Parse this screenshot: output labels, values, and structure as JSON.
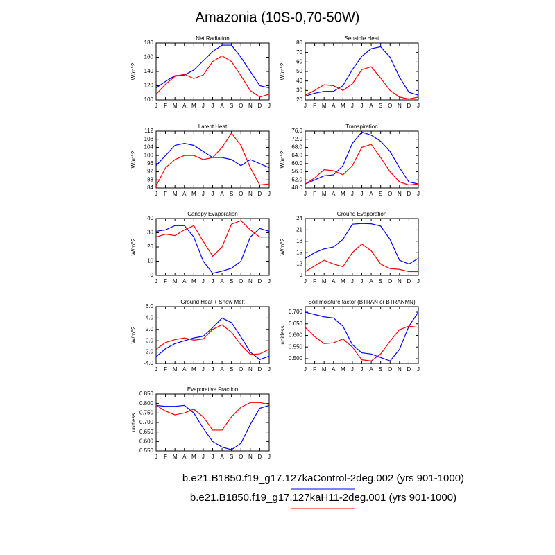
{
  "title": "Amazonia (10S-0,70-50W)",
  "legend": [
    {
      "name": "b.e21.B1850.f19_g17.127kaControl-2deg.002 (yrs 901-1000)",
      "color": "#0000ff"
    },
    {
      "name": "b.e21.B1850.f19_g17.127kaH11-2deg.001 (yrs 901-1000)",
      "color": "#ff0000"
    }
  ],
  "chart_data": [
    {
      "type": "line",
      "title": "Net Radiation",
      "ylabel": "W/m^2",
      "categories": [
        "J",
        "F",
        "M",
        "A",
        "M",
        "J",
        "J",
        "A",
        "S",
        "O",
        "N",
        "D",
        "J"
      ],
      "ylim": [
        100,
        180
      ],
      "yticks": [
        100,
        120,
        140,
        160,
        180
      ],
      "series": [
        {
          "color": "#0000ff",
          "values": [
            117,
            126,
            134,
            135,
            142,
            155,
            168,
            177,
            177,
            160,
            140,
            120,
            117
          ]
        },
        {
          "color": "#ff0000",
          "values": [
            108,
            122,
            133,
            136,
            130,
            135,
            154,
            162,
            154,
            134,
            113,
            104,
            108
          ]
        }
      ]
    },
    {
      "type": "line",
      "title": "Sensible Heat",
      "ylabel": "W/m^2",
      "categories": [
        "J",
        "F",
        "M",
        "A",
        "M",
        "J",
        "J",
        "A",
        "S",
        "O",
        "N",
        "D",
        "J"
      ],
      "ylim": [
        20,
        80
      ],
      "yticks": [
        20,
        30,
        40,
        50,
        60,
        70,
        80
      ],
      "series": [
        {
          "color": "#0000ff",
          "values": [
            24,
            27,
            29,
            29,
            35,
            52,
            66,
            74,
            76,
            65,
            44,
            28,
            25
          ]
        },
        {
          "color": "#ff0000",
          "values": [
            25,
            30,
            36,
            35,
            30,
            37,
            52,
            55,
            43,
            30,
            23,
            21,
            23
          ]
        }
      ]
    },
    {
      "type": "line",
      "title": "Latent Heat",
      "ylabel": "W/m^2",
      "categories": [
        "J",
        "F",
        "M",
        "A",
        "M",
        "J",
        "J",
        "A",
        "S",
        "O",
        "N",
        "D",
        "J"
      ],
      "ylim": [
        84,
        112
      ],
      "yticks": [
        84,
        88,
        92,
        96,
        100,
        104,
        108,
        112
      ],
      "series": [
        {
          "color": "#0000ff",
          "values": [
            95,
            100,
            105,
            106,
            105,
            102,
            99,
            99,
            98,
            95,
            98,
            96,
            94
          ]
        },
        {
          "color": "#ff0000",
          "values": [
            85,
            94,
            98,
            100,
            100,
            98,
            99,
            104,
            111,
            105,
            94,
            85.5,
            86
          ]
        }
      ]
    },
    {
      "type": "line",
      "title": "Transpiration",
      "ylabel": "W/m^2",
      "categories": [
        "J",
        "F",
        "M",
        "A",
        "M",
        "J",
        "J",
        "A",
        "S",
        "O",
        "N",
        "D",
        "J"
      ],
      "ylim": [
        48,
        76
      ],
      "yticks": [
        {
          "value": 48,
          "label": "48.0"
        },
        {
          "value": 52,
          "label": "52.0"
        },
        {
          "value": 56,
          "label": "56.0"
        },
        {
          "value": 60,
          "label": "60.0"
        },
        {
          "value": 64,
          "label": "64.0"
        },
        {
          "value": 68,
          "label": "68.0"
        },
        {
          "value": 72,
          "label": "72.0"
        },
        {
          "value": 76,
          "label": "76.0"
        }
      ],
      "series": [
        {
          "color": "#0000ff",
          "values": [
            50,
            52,
            54,
            54.5,
            59,
            70,
            75.5,
            74,
            71,
            66,
            58,
            51,
            50
          ]
        },
        {
          "color": "#ff0000",
          "values": [
            50,
            53,
            57,
            56.5,
            54.5,
            59,
            68,
            69.5,
            63,
            56,
            51,
            49.5,
            50
          ]
        }
      ]
    },
    {
      "type": "line",
      "title": "Canopy Evaporation",
      "ylabel": "W/m^2",
      "categories": [
        "J",
        "F",
        "M",
        "A",
        "M",
        "J",
        "J",
        "A",
        "S",
        "O",
        "N",
        "D",
        "J"
      ],
      "ylim": [
        0,
        40
      ],
      "yticks": [
        0,
        10,
        20,
        30,
        40
      ],
      "series": [
        {
          "color": "#0000ff",
          "values": [
            31,
            32,
            35,
            35,
            27,
            10,
            1.5,
            3,
            5,
            10,
            27,
            33,
            31
          ]
        },
        {
          "color": "#ff0000",
          "values": [
            27,
            29,
            28,
            32,
            35,
            24,
            13.5,
            20,
            36,
            38.5,
            32,
            27,
            27
          ]
        }
      ]
    },
    {
      "type": "line",
      "title": "Ground Evaporation",
      "ylabel": "W/m^2",
      "categories": [
        "J",
        "F",
        "M",
        "A",
        "M",
        "J",
        "J",
        "A",
        "S",
        "O",
        "N",
        "D",
        "J"
      ],
      "ylim": [
        9,
        24
      ],
      "yticks": [
        9,
        12,
        15,
        18,
        21,
        24
      ],
      "series": [
        {
          "color": "#0000ff",
          "values": [
            13.5,
            15,
            16,
            16.5,
            18.5,
            22.5,
            22.7,
            22.6,
            22,
            18.5,
            13,
            12,
            13.5
          ]
        },
        {
          "color": "#ff0000",
          "values": [
            10,
            11.5,
            13,
            12,
            11.3,
            15,
            17.3,
            15.5,
            12,
            10.8,
            10.6,
            10,
            10
          ]
        }
      ]
    },
    {
      "type": "line",
      "title": "Ground Heat + Snow Melt",
      "ylabel": "W/m^2",
      "categories": [
        "J",
        "F",
        "M",
        "A",
        "M",
        "J",
        "J",
        "A",
        "S",
        "O",
        "N",
        "D",
        "J"
      ],
      "ylim": [
        -4,
        6
      ],
      "yticks": [
        {
          "value": -4,
          "label": "-4.0"
        },
        {
          "value": -2,
          "label": "-2.0"
        },
        {
          "value": 0,
          "label": "0.0"
        },
        {
          "value": 2,
          "label": "2.0"
        },
        {
          "value": 4,
          "label": "4.0"
        },
        {
          "value": 6,
          "label": "6.0"
        }
      ],
      "series": [
        {
          "color": "#0000ff",
          "values": [
            -2.8,
            -1.4,
            -0.5,
            0,
            0.5,
            0.8,
            2.3,
            4,
            3.2,
            0.7,
            -2,
            -3.3,
            -2.7
          ]
        },
        {
          "color": "#ff0000",
          "values": [
            -1.5,
            -0.3,
            0.2,
            0.5,
            0.1,
            0.3,
            2,
            2.8,
            1.5,
            -0.7,
            -2.4,
            -2.3,
            -1.5
          ]
        }
      ]
    },
    {
      "type": "line",
      "title": "Soil moisture factor (BTRAN or BTRANMN)",
      "ylabel": "unitless",
      "categories": [
        "J",
        "F",
        "M",
        "A",
        "M",
        "J",
        "J",
        "A",
        "S",
        "O",
        "N",
        "D",
        "J"
      ],
      "ylim": [
        0.479,
        0.724
      ],
      "yticks": [
        {
          "value": 0.5,
          "label": "0.500"
        },
        {
          "value": 0.55,
          "label": "0.550"
        },
        {
          "value": 0.6,
          "label": "0.600"
        },
        {
          "value": 0.65,
          "label": "0.650"
        },
        {
          "value": 0.7,
          "label": "0.700"
        }
      ],
      "series": [
        {
          "color": "#0000ff",
          "values": [
            0.7,
            0.69,
            0.68,
            0.675,
            0.64,
            0.56,
            0.525,
            0.52,
            0.505,
            0.49,
            0.54,
            0.64,
            0.7
          ]
        },
        {
          "color": "#ff0000",
          "values": [
            0.635,
            0.595,
            0.565,
            0.568,
            0.585,
            0.55,
            0.495,
            0.49,
            0.52,
            0.575,
            0.625,
            0.64,
            0.635
          ]
        }
      ]
    },
    {
      "type": "line",
      "title": "Evaporative Fraction",
      "ylabel": "unitless",
      "categories": [
        "J",
        "F",
        "M",
        "A",
        "M",
        "J",
        "J",
        "A",
        "S",
        "O",
        "N",
        "D",
        "J"
      ],
      "ylim": [
        0.55,
        0.85
      ],
      "yticks": [
        {
          "value": 0.55,
          "label": "0.550"
        },
        {
          "value": 0.6,
          "label": "0.600"
        },
        {
          "value": 0.65,
          "label": "0.650"
        },
        {
          "value": 0.7,
          "label": "0.700"
        },
        {
          "value": 0.75,
          "label": "0.750"
        },
        {
          "value": 0.8,
          "label": "0.800"
        },
        {
          "value": 0.85,
          "label": "0.850"
        }
      ],
      "series": [
        {
          "color": "#0000ff",
          "values": [
            0.79,
            0.785,
            0.785,
            0.79,
            0.75,
            0.67,
            0.6,
            0.57,
            0.557,
            0.59,
            0.69,
            0.775,
            0.79
          ]
        },
        {
          "color": "#ff0000",
          "values": [
            0.79,
            0.76,
            0.74,
            0.75,
            0.77,
            0.73,
            0.66,
            0.66,
            0.73,
            0.78,
            0.805,
            0.805,
            0.795
          ]
        }
      ]
    }
  ]
}
